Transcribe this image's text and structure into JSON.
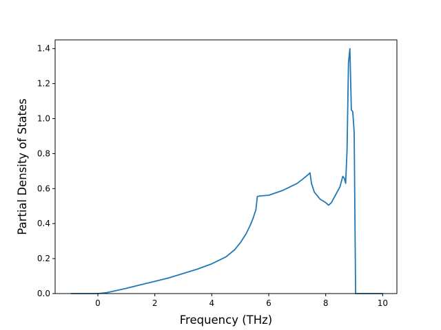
{
  "chart_data": {
    "type": "line",
    "title": "",
    "xlabel": "Frequency (THz)",
    "ylabel": "Partial Density of States",
    "xlim": [
      -1.5,
      10.5
    ],
    "ylim": [
      0.0,
      1.45
    ],
    "x_ticks": [
      0,
      2,
      4,
      6,
      8,
      10
    ],
    "y_ticks": [
      0.0,
      0.2,
      0.4,
      0.6,
      0.8,
      1.0,
      1.2,
      1.4
    ],
    "x_tick_labels": [
      "0",
      "2",
      "4",
      "6",
      "8",
      "10"
    ],
    "y_tick_labels": [
      "0.0",
      "0.2",
      "0.4",
      "0.6",
      "0.8",
      "1.0",
      "1.2",
      "1.4"
    ],
    "grid": false,
    "line_color": "#1f77b4",
    "series": [
      {
        "x": [
          -0.95,
          -0.5,
          0.0,
          0.3,
          0.5,
          1.0,
          1.5,
          2.0,
          2.5,
          3.0,
          3.5,
          4.0,
          4.5,
          4.8,
          5.0,
          5.2,
          5.35,
          5.45,
          5.55,
          5.6,
          5.7,
          6.0,
          6.5,
          7.0,
          7.2,
          7.35,
          7.45,
          7.5,
          7.6,
          7.7,
          7.8,
          8.0,
          8.1,
          8.2,
          8.3,
          8.4,
          8.5,
          8.6,
          8.65,
          8.7,
          8.75,
          8.8,
          8.85,
          8.9,
          8.95,
          9.0,
          9.05,
          9.1,
          9.5,
          10.0
        ],
        "y": [
          0.0,
          0.0,
          0.0,
          0.005,
          0.012,
          0.03,
          0.05,
          0.07,
          0.09,
          0.115,
          0.14,
          0.17,
          0.21,
          0.25,
          0.29,
          0.34,
          0.39,
          0.43,
          0.48,
          0.555,
          0.558,
          0.562,
          0.59,
          0.63,
          0.655,
          0.675,
          0.69,
          0.63,
          0.58,
          0.56,
          0.54,
          0.52,
          0.505,
          0.52,
          0.55,
          0.58,
          0.61,
          0.67,
          0.66,
          0.63,
          0.82,
          1.32,
          1.4,
          1.05,
          1.04,
          0.92,
          0.0,
          0.0,
          0.0,
          0.0
        ]
      }
    ]
  }
}
